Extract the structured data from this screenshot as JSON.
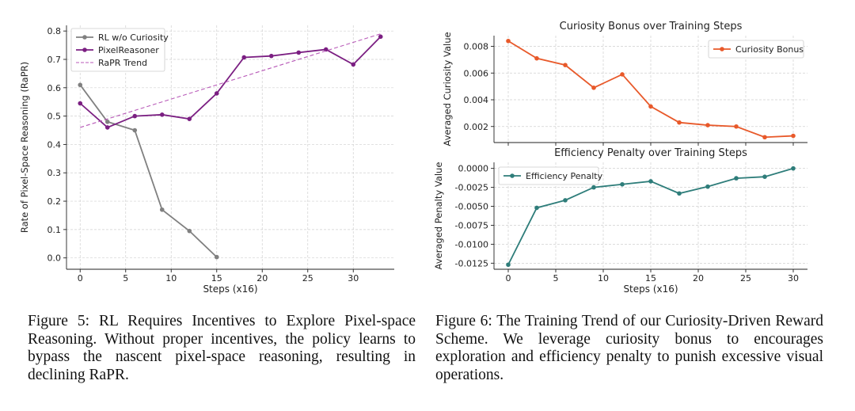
{
  "figure5": {
    "caption_number": "Figure 5:",
    "caption_text": "RL Requires Incentives to Explore Pixel-space Reasoning. Without proper incentives, the policy learns to bypass the nascent pixel-space reasoning, resulting in declining RaPR."
  },
  "figure6": {
    "caption_number": "Figure 6:",
    "caption_text": "The Training Trend of our Curiosity-Driven Reward Scheme. We leverage curiosity bonus to encourages exploration and efficiency penalty to punish excessive visual operations."
  },
  "colors": {
    "rl": "#808080",
    "pixel": "#7b1f82",
    "trend": "#b85ab8",
    "curiosity": "#e8592a",
    "efficiency": "#2e7d7a",
    "grid": "#d0d0d0"
  },
  "chart_data": [
    {
      "type": "line",
      "title": "",
      "xlabel": "Steps (x16)",
      "ylabel": "Rate of Pixel-Space Reasoning (RaPR)",
      "xlim": [
        -1.5,
        34.5
      ],
      "ylim": [
        -0.04,
        0.82
      ],
      "xticks": [
        0,
        5,
        10,
        15,
        20,
        25,
        30
      ],
      "yticks": [
        0.0,
        0.1,
        0.2,
        0.3,
        0.4,
        0.5,
        0.6,
        0.7,
        0.8
      ],
      "ytick_labels": [
        "0.0",
        "0.1",
        "0.2",
        "0.3",
        "0.4",
        "0.5",
        "0.6",
        "0.7",
        "0.8"
      ],
      "grid": true,
      "legend": "top-left",
      "series": [
        {
          "name": "RL w/o Curiosity",
          "style": "line-marker",
          "x": [
            0,
            3,
            6,
            9,
            12,
            15
          ],
          "values": [
            0.61,
            0.48,
            0.45,
            0.17,
            0.095,
            0.003
          ]
        },
        {
          "name": "PixelReasoner",
          "style": "line-marker",
          "x": [
            0,
            3,
            6,
            9,
            12,
            15,
            18,
            21,
            24,
            27,
            30,
            33
          ],
          "values": [
            0.545,
            0.46,
            0.5,
            0.505,
            0.49,
            0.58,
            0.707,
            0.712,
            0.724,
            0.735,
            0.682,
            0.78
          ]
        },
        {
          "name": "RaPR Trend",
          "style": "dashed",
          "x": [
            0,
            33
          ],
          "values": [
            0.46,
            0.79
          ]
        }
      ]
    },
    {
      "type": "line",
      "title": "Curiosity Bonus over Training Steps",
      "xlabel": "",
      "ylabel": "Averaged Curiosity Value",
      "xlim": [
        -1.5,
        31.5
      ],
      "ylim": [
        0.0008,
        0.0088
      ],
      "xticks": [
        0,
        5,
        10,
        15,
        20,
        25,
        30
      ],
      "yticks": [
        0.002,
        0.004,
        0.006,
        0.008
      ],
      "ytick_labels": [
        "0.002",
        "0.004",
        "0.006",
        "0.008"
      ],
      "grid": true,
      "legend": "top-right",
      "series": [
        {
          "name": "Curiosity Bonus",
          "x": [
            0,
            3,
            6,
            9,
            12,
            15,
            18,
            21,
            24,
            27,
            30
          ],
          "values": [
            0.0084,
            0.0071,
            0.0066,
            0.0049,
            0.0059,
            0.0035,
            0.0023,
            0.0021,
            0.002,
            0.0012,
            0.0013
          ]
        }
      ]
    },
    {
      "type": "line",
      "title": "Efficiency Penalty over Training Steps",
      "xlabel": "Steps (x16)",
      "ylabel": "Averaged Penalty Value",
      "xlim": [
        -1.5,
        31.5
      ],
      "ylim": [
        -0.0133,
        0.0008
      ],
      "xticks": [
        0,
        5,
        10,
        15,
        20,
        25,
        30
      ],
      "yticks": [
        -0.0125,
        -0.01,
        -0.0075,
        -0.005,
        -0.0025,
        0.0
      ],
      "ytick_labels": [
        "-0.0125",
        "-0.0100",
        "-0.0075",
        "-0.0050",
        "-0.0025",
        "0.0000"
      ],
      "grid": true,
      "legend": "top-left",
      "series": [
        {
          "name": "Efficiency Penalty",
          "x": [
            0,
            3,
            6,
            9,
            12,
            15,
            18,
            21,
            24,
            27,
            30
          ],
          "values": [
            -0.0127,
            -0.0052,
            -0.0042,
            -0.0025,
            -0.0021,
            -0.0017,
            -0.0033,
            -0.0024,
            -0.0013,
            -0.0011,
            0.0
          ]
        }
      ]
    }
  ]
}
